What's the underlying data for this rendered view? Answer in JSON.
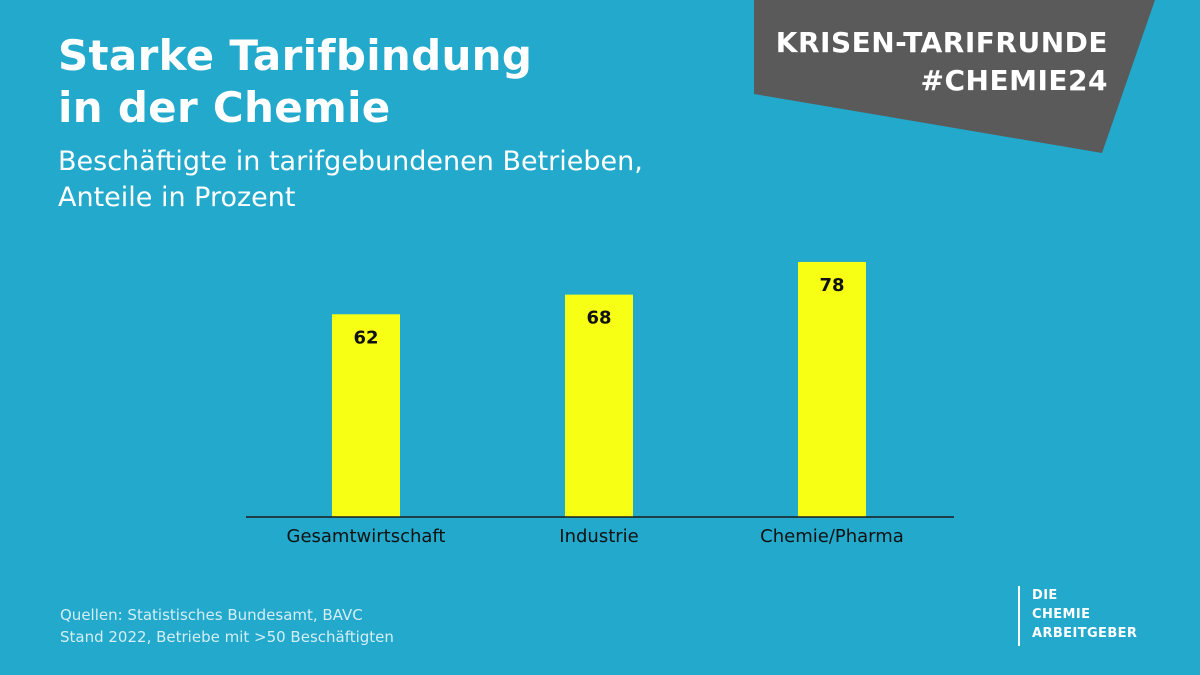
{
  "header": {
    "title_line1": "Starke Tarifbindung",
    "title_line2": "in der Chemie",
    "subtitle_line1": "Beschäftigte in tarifgebundenen Betrieben,",
    "subtitle_line2": "Anteile in Prozent"
  },
  "banner": {
    "line1": "KRISEN-TARIFRUNDE",
    "line2": "#CHEMIE24",
    "color": "#5a5a5a"
  },
  "chart_data": {
    "type": "bar",
    "categories": [
      "Gesamtwirtschaft",
      "Industrie",
      "Chemie/Pharma"
    ],
    "values": [
      62,
      68,
      78
    ],
    "title": "Starke Tarifbindung in der Chemie",
    "subtitle": "Beschäftigte in tarifgebundenen Betrieben, Anteile in Prozent",
    "xlabel": "",
    "ylabel": "",
    "ylim": [
      0,
      100
    ],
    "grid": false,
    "legend": "none",
    "bar_color": "#f7ff14",
    "axis_color": "#1a1a1a"
  },
  "footer": {
    "source_line1": "Quellen: Statistisches Bundesamt, BAVC",
    "source_line2": "Stand 2022, Betriebe mit >50 Beschäftigten"
  },
  "logo": {
    "line1": "DIE",
    "line2": "CHEMIE",
    "line3": "ARBEITGEBER"
  },
  "colors": {
    "background": "#22a9cb",
    "text": "#ffffff"
  }
}
